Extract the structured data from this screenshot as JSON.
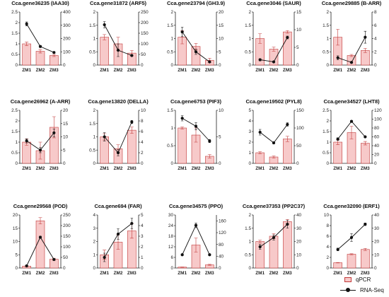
{
  "colors": {
    "bar_fill": "#f7c9c9",
    "bar_stroke": "#c23b3b",
    "line": "#111111",
    "axis": "#222222"
  },
  "legend": {
    "bar_label": "qPCR",
    "line_label": "RNA-Seq"
  },
  "chart_data": [
    {
      "type": "bar",
      "title": "Cca.gene36235 (IAA30)",
      "categories": [
        "ZM1",
        "ZM2",
        "ZM3"
      ],
      "series": [
        {
          "name": "qPCR",
          "values": [
            1.0,
            0.65,
            0.45
          ],
          "errors": [
            0.08,
            0.08,
            0.05
          ]
        },
        {
          "name": "RNA-Seq",
          "values": [
            310,
            140,
            95
          ],
          "errors": [
            15,
            8,
            6
          ]
        }
      ],
      "left_ylim": [
        0,
        2.5
      ],
      "left_ticks": [
        0,
        0.5,
        1.0,
        1.5,
        2.0,
        2.5
      ],
      "right_ylim": [
        0,
        400
      ],
      "right_ticks": [
        0,
        100,
        200,
        300,
        400
      ]
    },
    {
      "type": "bar",
      "title": "Cca.gene31872 (ARF5)",
      "categories": [
        "ZM1",
        "ZM2",
        "ZM3"
      ],
      "series": [
        {
          "name": "qPCR",
          "values": [
            1.05,
            0.8,
            0.45
          ],
          "errors": [
            0.1,
            0.25,
            0.1
          ]
        },
        {
          "name": "RNA-Seq",
          "values": [
            190,
            70,
            45
          ],
          "errors": [
            15,
            30,
            4
          ]
        }
      ],
      "left_ylim": [
        0,
        2.0
      ],
      "left_ticks": [
        0,
        0.5,
        1.0,
        1.5,
        2.0
      ],
      "right_ylim": [
        0,
        250
      ],
      "right_ticks": [
        0,
        50,
        100,
        150,
        200,
        250
      ]
    },
    {
      "type": "bar",
      "title": "Cca.gene23794 (GH3.9)",
      "categories": [
        "ZM1",
        "ZM2",
        "ZM3"
      ],
      "series": [
        {
          "name": "qPCR",
          "values": [
            1.05,
            0.7,
            0.18
          ],
          "errors": [
            0.25,
            0.12,
            0.08
          ]
        },
        {
          "name": "RNA-Seq",
          "values": [
            12.5,
            5.0,
            1.2
          ],
          "errors": [
            1.8,
            1.0,
            0.3
          ]
        }
      ],
      "left_ylim": [
        0,
        2.0
      ],
      "left_ticks": [
        0,
        0.5,
        1.0,
        1.5,
        2.0
      ],
      "right_ylim": [
        0,
        20
      ],
      "right_ticks": [
        0,
        5,
        10,
        15,
        20
      ]
    },
    {
      "type": "bar",
      "title": "Cca.gene3046 (SAUR)",
      "categories": [
        "ZM1",
        "ZM2",
        "ZM3"
      ],
      "series": [
        {
          "name": "qPCR",
          "values": [
            1.0,
            0.6,
            1.25
          ],
          "errors": [
            0.18,
            0.08,
            0.05
          ]
        },
        {
          "name": "RNA-Seq",
          "values": [
            1.5,
            0.9,
            7.8
          ],
          "errors": [
            0.3,
            0.2,
            0.4
          ]
        }
      ],
      "left_ylim": [
        0,
        2.0
      ],
      "left_ticks": [
        0,
        0.5,
        1.0,
        1.5,
        2.0
      ],
      "right_ylim": [
        0,
        15
      ],
      "right_ticks": [
        0,
        5,
        10,
        15
      ]
    },
    {
      "type": "bar",
      "title": "Cca.gene29885 (B-ARR)",
      "categories": [
        "ZM1",
        "ZM2",
        "ZM3"
      ],
      "series": [
        {
          "name": "qPCR",
          "values": [
            1.05,
            0.36,
            0.55
          ],
          "errors": [
            0.3,
            0.04,
            0.08
          ]
        },
        {
          "name": "RNA-Seq",
          "values": [
            1.1,
            0.4,
            4.2
          ],
          "errors": [
            0.3,
            0.1,
            0.9
          ]
        }
      ],
      "left_ylim": [
        0,
        2.0
      ],
      "left_ticks": [
        0,
        0.5,
        1.0,
        1.5,
        2.0
      ],
      "right_ylim": [
        0,
        8
      ],
      "right_ticks": [
        0,
        2,
        4,
        6,
        8
      ]
    },
    {
      "type": "bar",
      "title": "Cca.gene26962 (A-ARR)",
      "categories": [
        "ZM1",
        "ZM2",
        "ZM3"
      ],
      "series": [
        {
          "name": "qPCR",
          "values": [
            1.0,
            0.6,
            1.7
          ],
          "errors": [
            0.15,
            0.4,
            0.5
          ]
        },
        {
          "name": "RNA-Seq",
          "values": [
            8.5,
            5.0,
            11.5
          ],
          "errors": [
            0.8,
            1.0,
            1.5
          ]
        }
      ],
      "left_ylim": [
        0,
        2.5
      ],
      "left_ticks": [
        0,
        0.5,
        1.0,
        1.5,
        2.0,
        2.5
      ],
      "right_ylim": [
        0,
        20
      ],
      "right_ticks": [
        0,
        5,
        10,
        15,
        20
      ]
    },
    {
      "type": "bar",
      "title": "Cca.gene13820 (DELLA)",
      "categories": [
        "ZM1",
        "ZM2",
        "ZM3"
      ],
      "series": [
        {
          "name": "qPCR",
          "values": [
            1.0,
            0.55,
            1.25
          ],
          "errors": [
            0.12,
            0.15,
            0.12
          ]
        },
        {
          "name": "RNA-Seq",
          "values": [
            5.0,
            2.0,
            7.8
          ],
          "errors": [
            0.8,
            0.6,
            0.3
          ]
        }
      ],
      "left_ylim": [
        0,
        2.0
      ],
      "left_ticks": [
        0,
        0.5,
        1.0,
        1.5,
        2.0
      ],
      "right_ylim": [
        0,
        10
      ],
      "right_ticks": [
        0,
        2,
        4,
        6,
        8,
        10
      ]
    },
    {
      "type": "bar",
      "title": "Cca.gene6753 (PIF3)",
      "categories": [
        "ZM1",
        "ZM2",
        "ZM3"
      ],
      "series": [
        {
          "name": "qPCR",
          "values": [
            1.0,
            0.8,
            0.2
          ],
          "errors": [
            0.03,
            0.2,
            0.05
          ]
        },
        {
          "name": "RNA-Seq",
          "values": [
            8.5,
            7.0,
            4.2
          ],
          "errors": [
            0.5,
            0.7,
            0.3
          ]
        }
      ],
      "left_ylim": [
        0,
        1.5
      ],
      "left_ticks": [
        0,
        0.5,
        1.0,
        1.5
      ],
      "right_ylim": [
        0,
        10
      ],
      "right_ticks": [
        0,
        5,
        10
      ]
    },
    {
      "type": "bar",
      "title": "Cca.gene19502 (PYL8)",
      "categories": [
        "ZM1",
        "ZM2",
        "ZM3"
      ],
      "series": [
        {
          "name": "qPCR",
          "values": [
            1.0,
            0.6,
            2.3
          ],
          "errors": [
            0.1,
            0.1,
            0.25
          ]
        },
        {
          "name": "RNA-Seq",
          "values": [
            88,
            58,
            110
          ],
          "errors": [
            8,
            3,
            5
          ]
        }
      ],
      "left_ylim": [
        0,
        5
      ],
      "left_ticks": [
        0,
        1,
        2,
        3,
        4,
        5
      ],
      "right_ylim": [
        0,
        150
      ],
      "right_ticks": [
        0,
        50,
        100,
        150
      ]
    },
    {
      "type": "bar",
      "title": "Cca.gene34527 (LHT8)",
      "categories": [
        "ZM1",
        "ZM2",
        "ZM3"
      ],
      "series": [
        {
          "name": "qPCR",
          "values": [
            1.0,
            1.45,
            0.95
          ],
          "errors": [
            0.12,
            0.3,
            0.08
          ]
        },
        {
          "name": "RNA-Seq",
          "values": [
            55,
            95,
            60
          ],
          "errors": [
            3,
            2,
            2
          ]
        }
      ],
      "left_ylim": [
        0,
        2.5
      ],
      "left_ticks": [
        0,
        0.5,
        1.0,
        1.5,
        2.0,
        2.5
      ],
      "right_ylim": [
        0,
        120
      ],
      "right_ticks": [
        0,
        20,
        40,
        60,
        80,
        100,
        120
      ]
    },
    {
      "type": "bar",
      "title": "Cca.gene29568 (POD)",
      "categories": [
        "ZM1",
        "ZM2",
        "ZM3"
      ],
      "series": [
        {
          "name": "qPCR",
          "values": [
            0.7,
            17.8,
            3.3
          ],
          "errors": [
            0.2,
            1.2,
            0.4
          ]
        },
        {
          "name": "RNA-Seq",
          "values": [
            10,
            145,
            40
          ],
          "errors": [
            3,
            5,
            3
          ]
        }
      ],
      "left_ylim": [
        0,
        20
      ],
      "left_ticks": [
        0,
        5,
        10,
        15,
        20
      ],
      "right_ylim": [
        0,
        250
      ],
      "right_ticks": [
        0,
        50,
        100,
        150,
        200,
        250
      ]
    },
    {
      "type": "bar",
      "title": "Cca.gene694 (FAR)",
      "categories": [
        "ZM1",
        "ZM2",
        "ZM3"
      ],
      "series": [
        {
          "name": "qPCR",
          "values": [
            1.0,
            1.95,
            2.8
          ],
          "errors": [
            0.35,
            0.55,
            0.55
          ]
        },
        {
          "name": "RNA-Seq",
          "values": [
            1.0,
            3.2,
            4.2
          ],
          "errors": [
            0.4,
            0.5,
            0.5
          ]
        }
      ],
      "left_ylim": [
        0,
        4
      ],
      "left_ticks": [
        0,
        1,
        2,
        3,
        4
      ],
      "right_ylim": [
        0,
        5
      ],
      "right_ticks": [
        0,
        1,
        2,
        3,
        4,
        5
      ]
    },
    {
      "type": "bar",
      "title": "Cca.gene34575 (PPO)",
      "categories": [
        "ZM1",
        "ZM2",
        "ZM3"
      ],
      "series": [
        {
          "name": "qPCR",
          "values": [
            0.5,
            13.0,
            1.8
          ],
          "errors": [
            0.1,
            4.0,
            0.3
          ]
        },
        {
          "name": "RNA-Seq",
          "values": [
            45,
            145,
            45
          ],
          "errors": [
            3,
            8,
            3
          ]
        }
      ],
      "left_ylim": [
        0,
        30
      ],
      "left_ticks": [
        0,
        6,
        12,
        18,
        24,
        30
      ],
      "right_ylim": [
        0,
        180
      ],
      "right_ticks": [
        0,
        40,
        80,
        120,
        160
      ]
    },
    {
      "type": "bar",
      "title": "Cca.gene37353 (PP2C37)",
      "categories": [
        "ZM1",
        "ZM2",
        "ZM3"
      ],
      "series": [
        {
          "name": "qPCR",
          "values": [
            1.0,
            1.2,
            1.75
          ],
          "errors": [
            0.05,
            0.1,
            0.08
          ]
        },
        {
          "name": "RNA-Seq",
          "values": [
            16,
            23,
            33
          ],
          "errors": [
            2,
            2,
            3
          ]
        }
      ],
      "left_ylim": [
        0,
        2.0
      ],
      "left_ticks": [
        0,
        0.5,
        1.0,
        1.5,
        2.0
      ],
      "right_ylim": [
        0,
        40
      ],
      "right_ticks": [
        0,
        10,
        20,
        30,
        40
      ]
    },
    {
      "type": "bar",
      "title": "Cca.gene32090 (ERF1)",
      "categories": [
        "ZM1",
        "ZM2",
        "ZM3"
      ],
      "series": [
        {
          "name": "qPCR",
          "values": [
            1.0,
            2.6,
            3.5
          ],
          "errors": [
            0.05,
            0.1,
            0.2
          ]
        },
        {
          "name": "RNA-Seq",
          "values": [
            14,
            23,
            33
          ],
          "errors": [
            1,
            3,
            1
          ]
        }
      ],
      "left_ylim": [
        0,
        10
      ],
      "left_ticks": [
        0,
        2,
        4,
        6,
        8,
        10
      ],
      "right_ylim": [
        0,
        40
      ],
      "right_ticks": [
        0,
        10,
        20,
        30,
        40
      ]
    }
  ]
}
